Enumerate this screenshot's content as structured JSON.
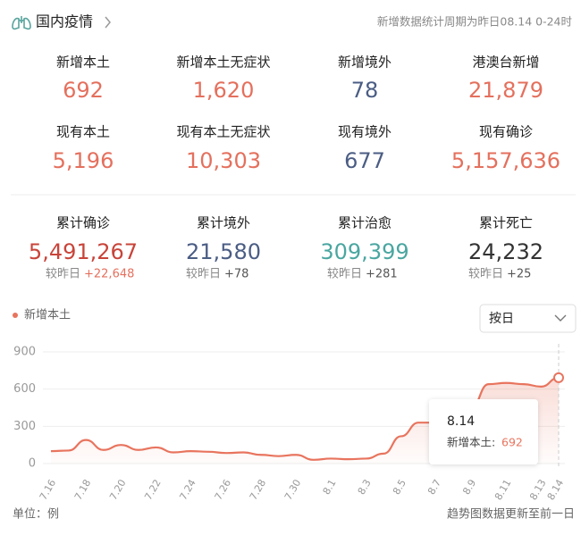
{
  "header": {
    "title": "国内疫情",
    "note": "新增数据统计周期为昨日08.14 0-24时"
  },
  "stats": [
    [
      {
        "label": "新增本土",
        "value": "692",
        "color": "#e4705d"
      },
      {
        "label": "新增本土无症状",
        "value": "1,620",
        "color": "#e4705d"
      },
      {
        "label": "新增境外",
        "value": "78",
        "color": "#4b5d84"
      },
      {
        "label": "港澳台新增",
        "value": "21,879",
        "color": "#e4705d"
      }
    ],
    [
      {
        "label": "现有本土",
        "value": "5,196",
        "color": "#e4705d"
      },
      {
        "label": "现有本土无症状",
        "value": "10,303",
        "color": "#e4705d"
      },
      {
        "label": "现有境外",
        "value": "677",
        "color": "#4b5d84"
      },
      {
        "label": "现有确诊",
        "value": "5,157,636",
        "color": "#e4705d"
      }
    ],
    [
      {
        "label": "累计确诊",
        "value": "5,491,267",
        "color": "#c8443a",
        "compare": "较昨日",
        "change": "+22,648",
        "change_color": "#e4705d"
      },
      {
        "label": "累计境外",
        "value": "21,580",
        "color": "#4b5d84",
        "compare": "较昨日",
        "change": "+78",
        "change_color": "#555555"
      },
      {
        "label": "累计治愈",
        "value": "309,399",
        "color": "#4aa6a0",
        "compare": "较昨日",
        "change": "+281",
        "change_color": "#555555"
      },
      {
        "label": "累计死亡",
        "value": "24,232",
        "color": "#333333",
        "compare": "较昨日",
        "change": "+25",
        "change_color": "#555555"
      }
    ]
  ],
  "dropdown": "按日",
  "chart_data": {
    "type": "line",
    "categories": [
      "7.16",
      null,
      "7.18",
      null,
      "7.20",
      null,
      "7.22",
      null,
      "7.24",
      null,
      "7.26",
      null,
      "7.28",
      null,
      "7.30",
      null,
      "8.1",
      null,
      "8.3",
      null,
      "8.5",
      null,
      "8.7",
      null,
      "8.9",
      null,
      "8.11",
      null,
      "8.13",
      "8.14"
    ],
    "series": [
      {
        "name": "新增本土",
        "color": "#e8745e",
        "values": [
          100,
          105,
          190,
          110,
          150,
          110,
          130,
          90,
          100,
          95,
          85,
          90,
          70,
          60,
          70,
          30,
          40,
          35,
          40,
          80,
          220,
          330,
          330,
          320,
          450,
          640,
          650,
          640,
          620,
          692
        ]
      }
    ],
    "ylim": [
      0,
      900
    ],
    "yticks": [
      0,
      300,
      600,
      900
    ],
    "grid": true,
    "tooltip": {
      "label": "新增本土:"
    }
  },
  "footer": {
    "unit": "单位：例",
    "note": "趋势图数据更新至前一日"
  }
}
